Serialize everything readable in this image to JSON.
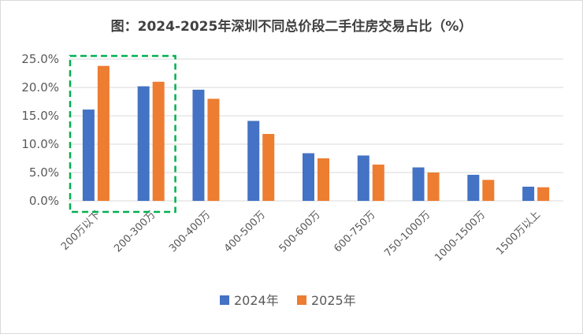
{
  "chart_data": {
    "type": "bar",
    "title": "图：2024-2025年深圳不同总价段二手住房交易占比（%）",
    "categories": [
      "200万以下",
      "200-300万",
      "300-400万",
      "400-500万",
      "500-600万",
      "600-750万",
      "750-1000万",
      "1000-1500万",
      "1500万以上"
    ],
    "series": [
      {
        "name": "2024年",
        "color": "#4472c4",
        "values": [
          16.1,
          20.2,
          19.6,
          14.1,
          8.4,
          8.0,
          5.9,
          4.6,
          2.5
        ]
      },
      {
        "name": "2025年",
        "color": "#ed7d31",
        "values": [
          23.8,
          21.0,
          18.0,
          11.8,
          7.5,
          6.4,
          5.0,
          3.7,
          2.4
        ]
      }
    ],
    "ylim": [
      0,
      25
    ],
    "yticks": [
      "0.0%",
      "5.0%",
      "10.0%",
      "15.0%",
      "20.0%",
      "25.0%"
    ],
    "grid": true,
    "legend": "bottom",
    "highlight": {
      "categories": [
        "200万以下",
        "200-300万"
      ],
      "color": "#00b050",
      "style": "dashed"
    }
  }
}
